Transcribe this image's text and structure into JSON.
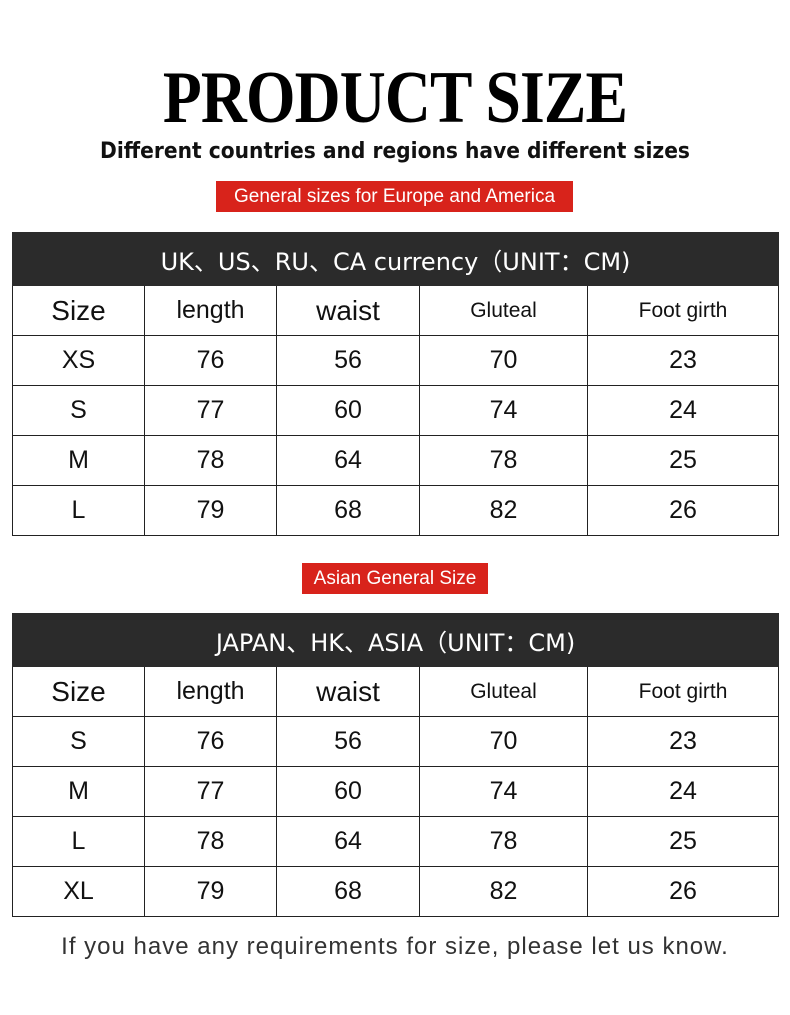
{
  "title": "PRODUCT SIZE",
  "subtitle": "Different countries and regions have different sizes",
  "colors": {
    "badge": "#d8231b",
    "table_header": "#2b2b2b"
  },
  "sections": [
    {
      "badge": "General sizes for Europe and America",
      "table_title": "UK、US、RU、CA currency（UNIT：CM)",
      "columns": [
        "Size",
        "length",
        "waist",
        "Gluteal",
        "Foot girth"
      ],
      "rows": [
        [
          "XS",
          "76",
          "56",
          "70",
          "23"
        ],
        [
          "S",
          "77",
          "60",
          "74",
          "24"
        ],
        [
          "M",
          "78",
          "64",
          "78",
          "25"
        ],
        [
          "L",
          "79",
          "68",
          "82",
          "26"
        ]
      ]
    },
    {
      "badge": "Asian General Size",
      "table_title": "JAPAN、HK、ASIA（UNIT：CM)",
      "columns": [
        "Size",
        "length",
        "waist",
        "Gluteal",
        "Foot girth"
      ],
      "rows": [
        [
          "S",
          "76",
          "56",
          "70",
          "23"
        ],
        [
          "M",
          "77",
          "60",
          "74",
          "24"
        ],
        [
          "L",
          "78",
          "64",
          "78",
          "25"
        ],
        [
          "XL",
          "79",
          "68",
          "82",
          "26"
        ]
      ]
    }
  ],
  "footer": "If you have any requirements for size, please let us know."
}
